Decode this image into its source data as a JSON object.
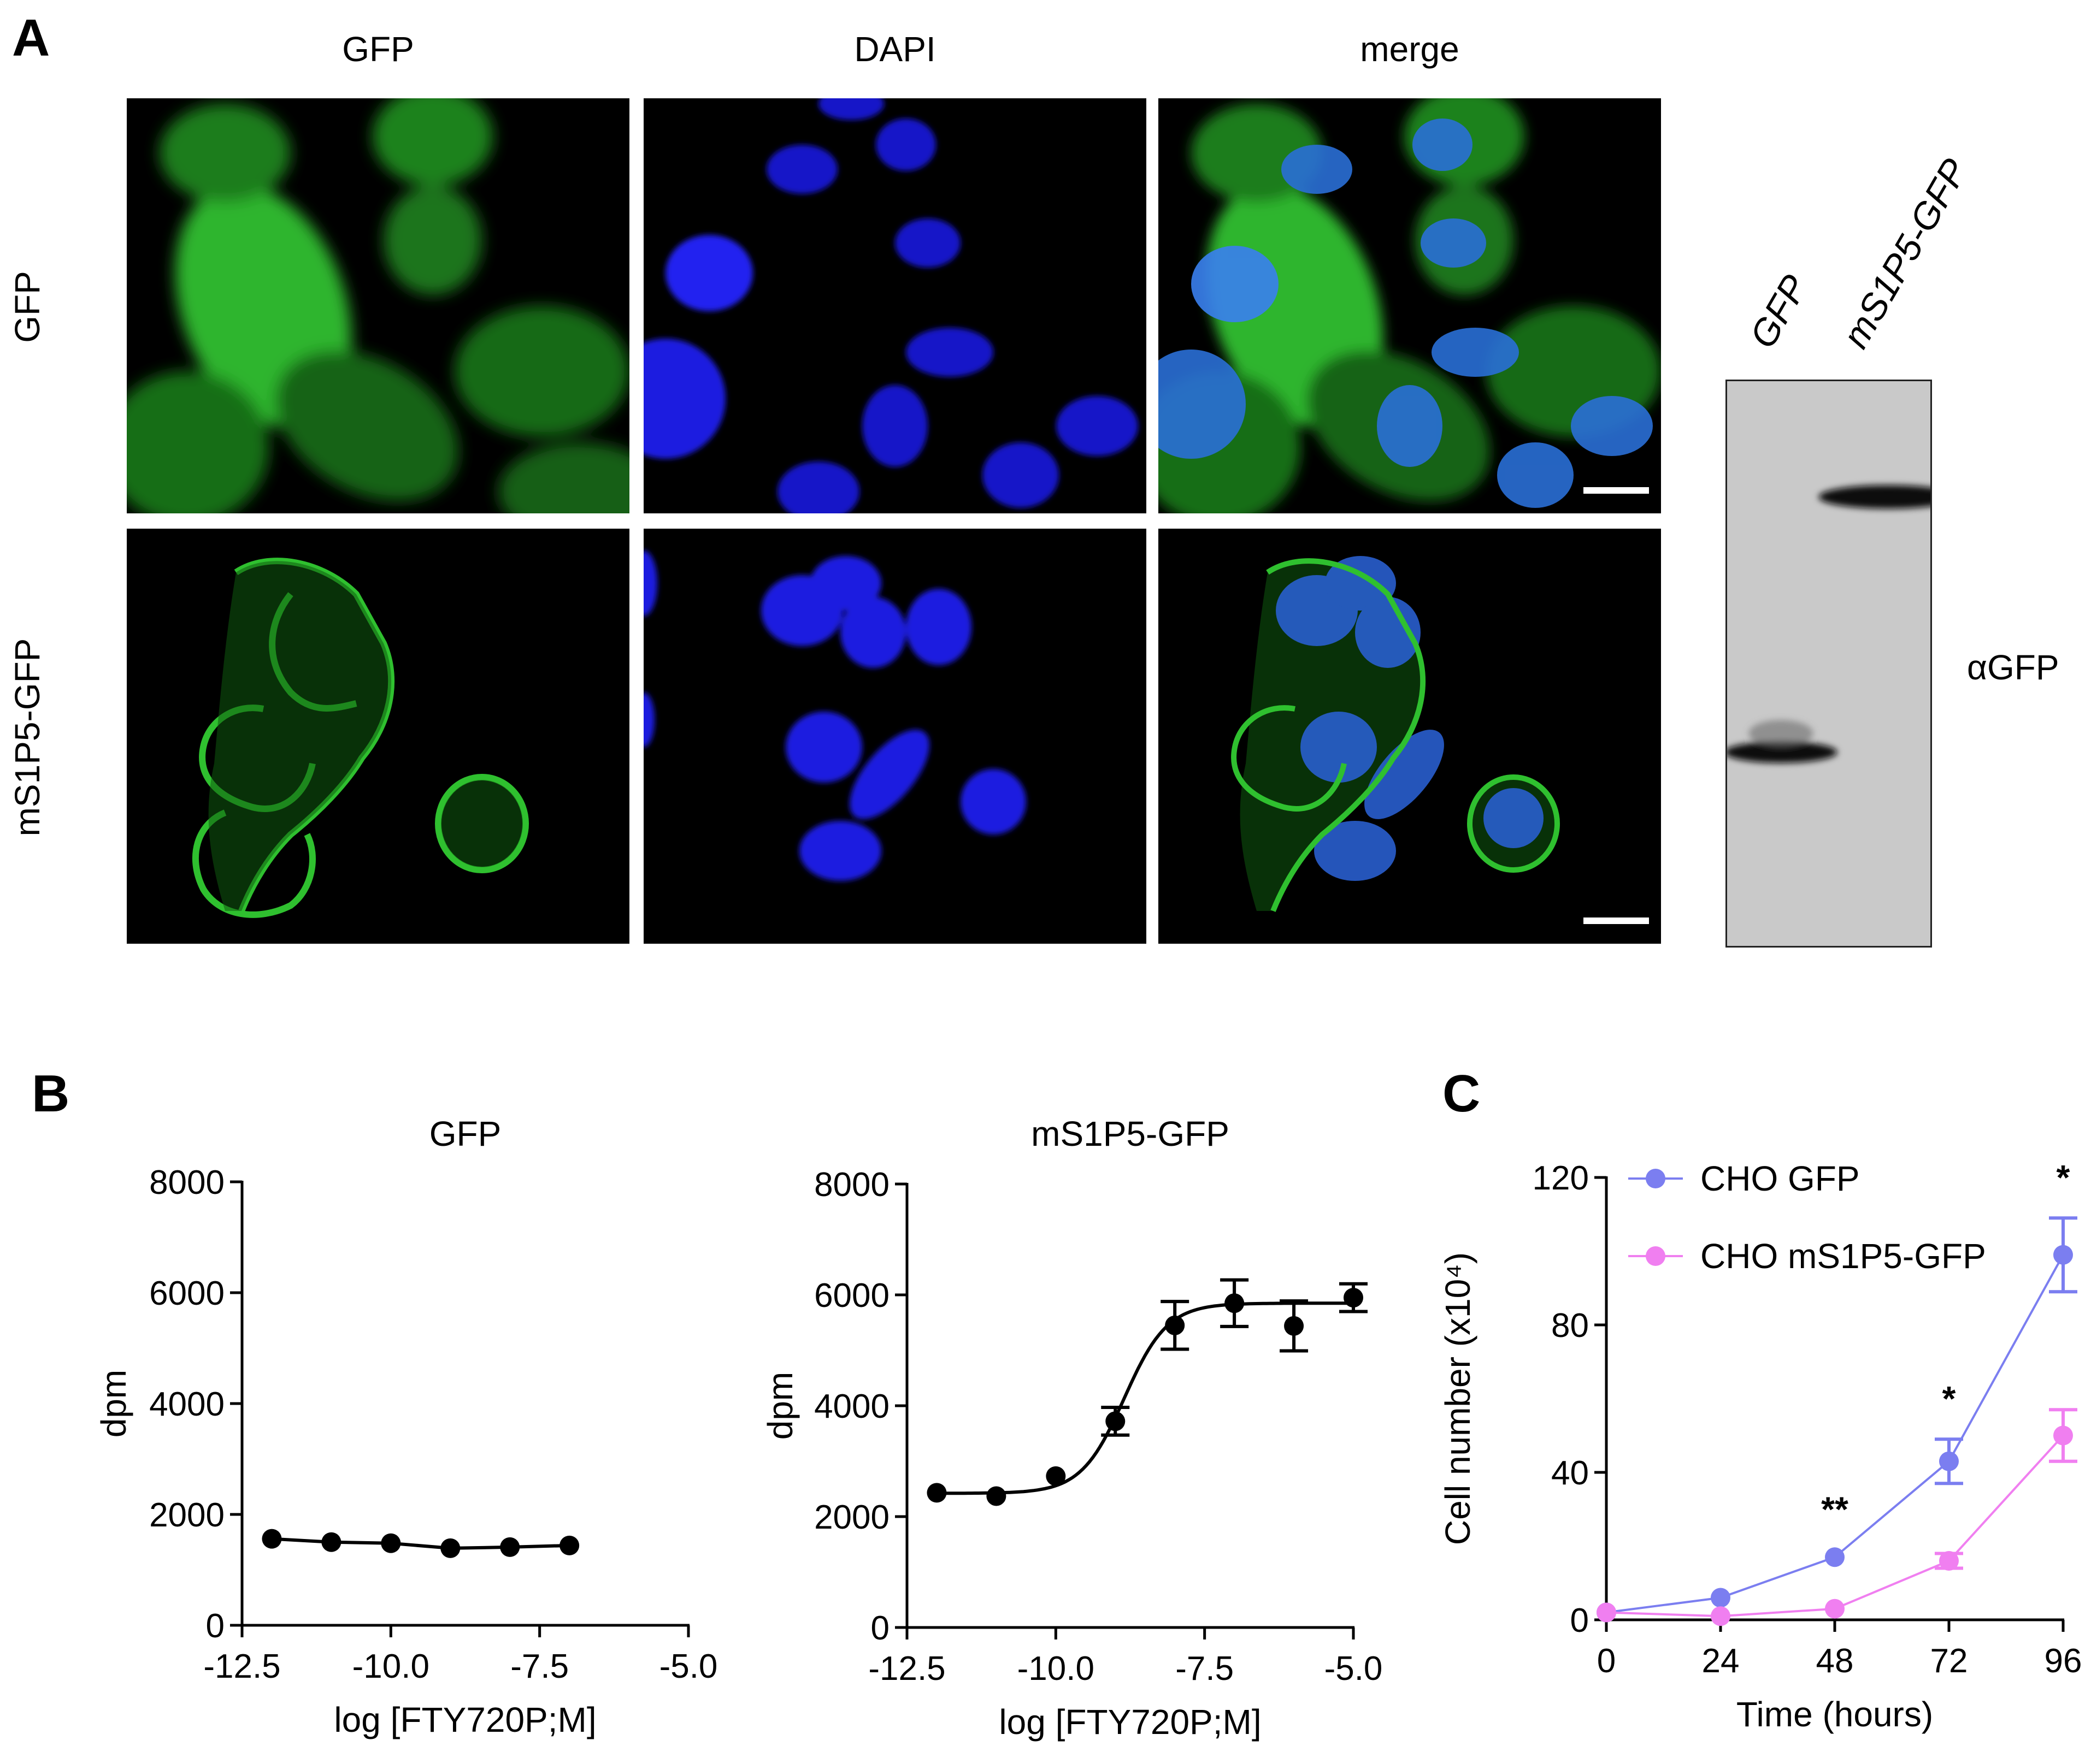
{
  "panels": {
    "a_label": "A",
    "b_label": "B",
    "c_label": "C"
  },
  "panel_a": {
    "column_labels": [
      "GFP",
      "DAPI",
      "merge"
    ],
    "row_labels": [
      "GFP",
      "mS1P5-GFP"
    ],
    "blot": {
      "lane_labels": [
        "GFP",
        "mS1P5-GFP"
      ],
      "antibody_label": "αGFP"
    },
    "colors": {
      "gfp": "#1f8a1f",
      "dapi": "#1a1ad6"
    }
  },
  "chart_data": [
    {
      "type": "line",
      "title": "GFP",
      "xlabel": "log [FTY720P;M]",
      "ylabel": "dpm",
      "xlim": [
        -12.5,
        -5.0
      ],
      "ylim": [
        0,
        8000
      ],
      "xticks": [
        -12.5,
        -10.0,
        -7.5,
        -5.0
      ],
      "xtick_labels": [
        "-12.5",
        "-10.0",
        "-7.5",
        "-5.0"
      ],
      "yticks": [
        0,
        2000,
        4000,
        6000,
        8000
      ],
      "ytick_labels": [
        "0",
        "2000",
        "4000",
        "6000",
        "8000"
      ],
      "series": [
        {
          "x": [
            -12,
            -11,
            -10,
            -9,
            -8,
            -7
          ],
          "y": [
            1560,
            1500,
            1480,
            1390,
            1410,
            1440
          ],
          "err": [
            0,
            0,
            0,
            0,
            0,
            0
          ],
          "color": "#000000"
        }
      ]
    },
    {
      "type": "line",
      "title": "mS1P5-GFP",
      "xlabel": "log [FTY720P;M]",
      "ylabel": "dpm",
      "xlim": [
        -12.5,
        -5.0
      ],
      "ylim": [
        0,
        8000
      ],
      "xticks": [
        -12.5,
        -10.0,
        -7.5,
        -5.0
      ],
      "xtick_labels": [
        "-12.5",
        "-10.0",
        "-7.5",
        "-5.0"
      ],
      "yticks": [
        0,
        2000,
        4000,
        6000,
        8000
      ],
      "ytick_labels": [
        "0",
        "2000",
        "4000",
        "6000",
        "8000"
      ],
      "fit": {
        "bottom": 2420,
        "top": 5850,
        "log_ec50": -8.85,
        "hill": 1.2
      },
      "series": [
        {
          "x": [
            -12,
            -11,
            -10,
            -9,
            -8,
            -7,
            -6,
            -5
          ],
          "y": [
            2430,
            2370,
            2730,
            3720,
            5450,
            5850,
            5440,
            5950
          ],
          "err": [
            0,
            0,
            0,
            250,
            430,
            420,
            450,
            250
          ],
          "color": "#000000"
        }
      ]
    },
    {
      "type": "line",
      "title": "",
      "xlabel": "Time (hours)",
      "ylabel": "Cell number (x10⁴)",
      "xlim": [
        0,
        96
      ],
      "ylim": [
        0,
        120
      ],
      "xticks": [
        0,
        24,
        48,
        72,
        96
      ],
      "xtick_labels": [
        "0",
        "24",
        "48",
        "72",
        "96"
      ],
      "yticks": [
        0,
        40,
        80,
        120
      ],
      "ytick_labels": [
        "0",
        "40",
        "80",
        "120"
      ],
      "legend": "top-left",
      "series": [
        {
          "name": "CHO GFP",
          "x": [
            0,
            24,
            48,
            72,
            96
          ],
          "y": [
            2,
            6,
            17,
            43,
            99
          ],
          "err": [
            0,
            0,
            0,
            6,
            10
          ],
          "color": "#7b7ef0"
        },
        {
          "name": "CHO mS1P5-GFP",
          "x": [
            0,
            24,
            48,
            72,
            96
          ],
          "y": [
            2,
            1,
            3,
            16,
            50
          ],
          "err": [
            0,
            0,
            0,
            2,
            7
          ],
          "color": "#f07ff0"
        }
      ],
      "annotations": [
        {
          "x": 48,
          "text": "**"
        },
        {
          "x": 72,
          "text": "*"
        },
        {
          "x": 96,
          "text": "*"
        }
      ]
    }
  ]
}
